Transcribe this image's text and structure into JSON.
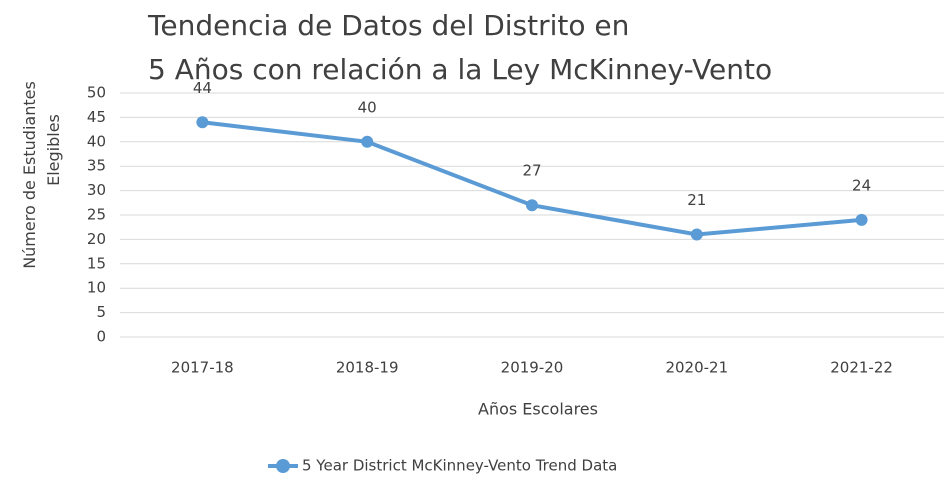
{
  "chart_data": {
    "type": "line",
    "title": "Tendencia de Datos del Distrito en 5 Años con relación a la Ley McKinney-Vento",
    "x_label": "Años Escolares",
    "y_label": "Número de Estudiantes Elegibles",
    "categories": [
      "2017-18",
      "2018-19",
      "2019-20",
      "2020-21",
      "2021-22"
    ],
    "series": [
      {
        "name": "5 Year District McKinney-Vento Trend Data",
        "color": "#5b9bd5",
        "values": [
          44,
          40,
          27,
          21,
          24
        ]
      }
    ],
    "ylim": [
      0,
      50
    ],
    "yticks": [
      0,
      5,
      10,
      15,
      20,
      25,
      30,
      35,
      40,
      45,
      50
    ],
    "grid": true,
    "legend": "bottom"
  }
}
